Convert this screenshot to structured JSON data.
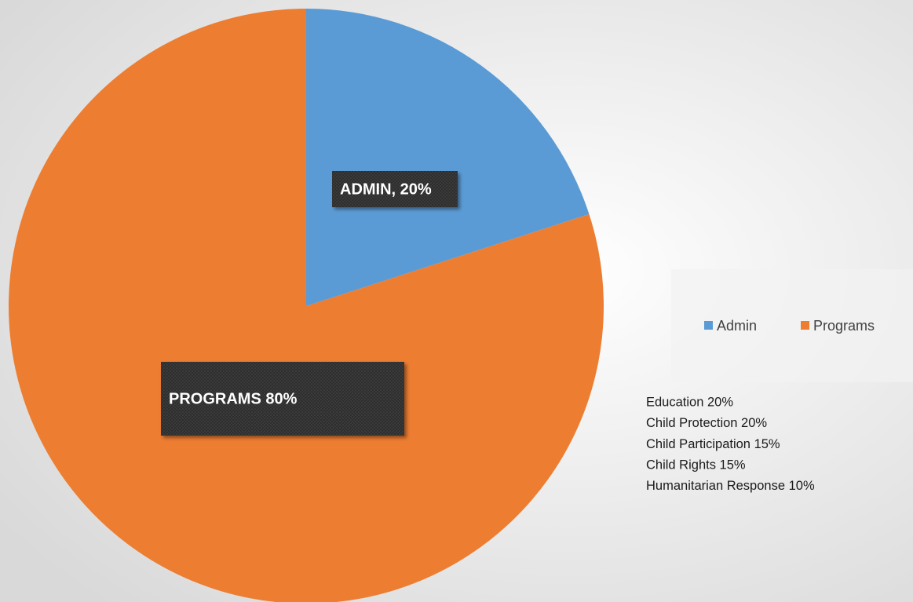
{
  "chart_data": {
    "type": "pie",
    "categories": [
      "Admin",
      "Programs"
    ],
    "values": [
      20,
      80
    ],
    "value_labels": [
      "ADMIN, 20%",
      "PROGRAMS 80%"
    ],
    "colors": [
      "#5b9bd5",
      "#ed7d31"
    ],
    "legend": "right",
    "annotations": [
      "Education 20%",
      "Child Protection 20%",
      "Child Participation 15%",
      "Child Rights 15%",
      "Humanitarian Response 10%"
    ]
  }
}
